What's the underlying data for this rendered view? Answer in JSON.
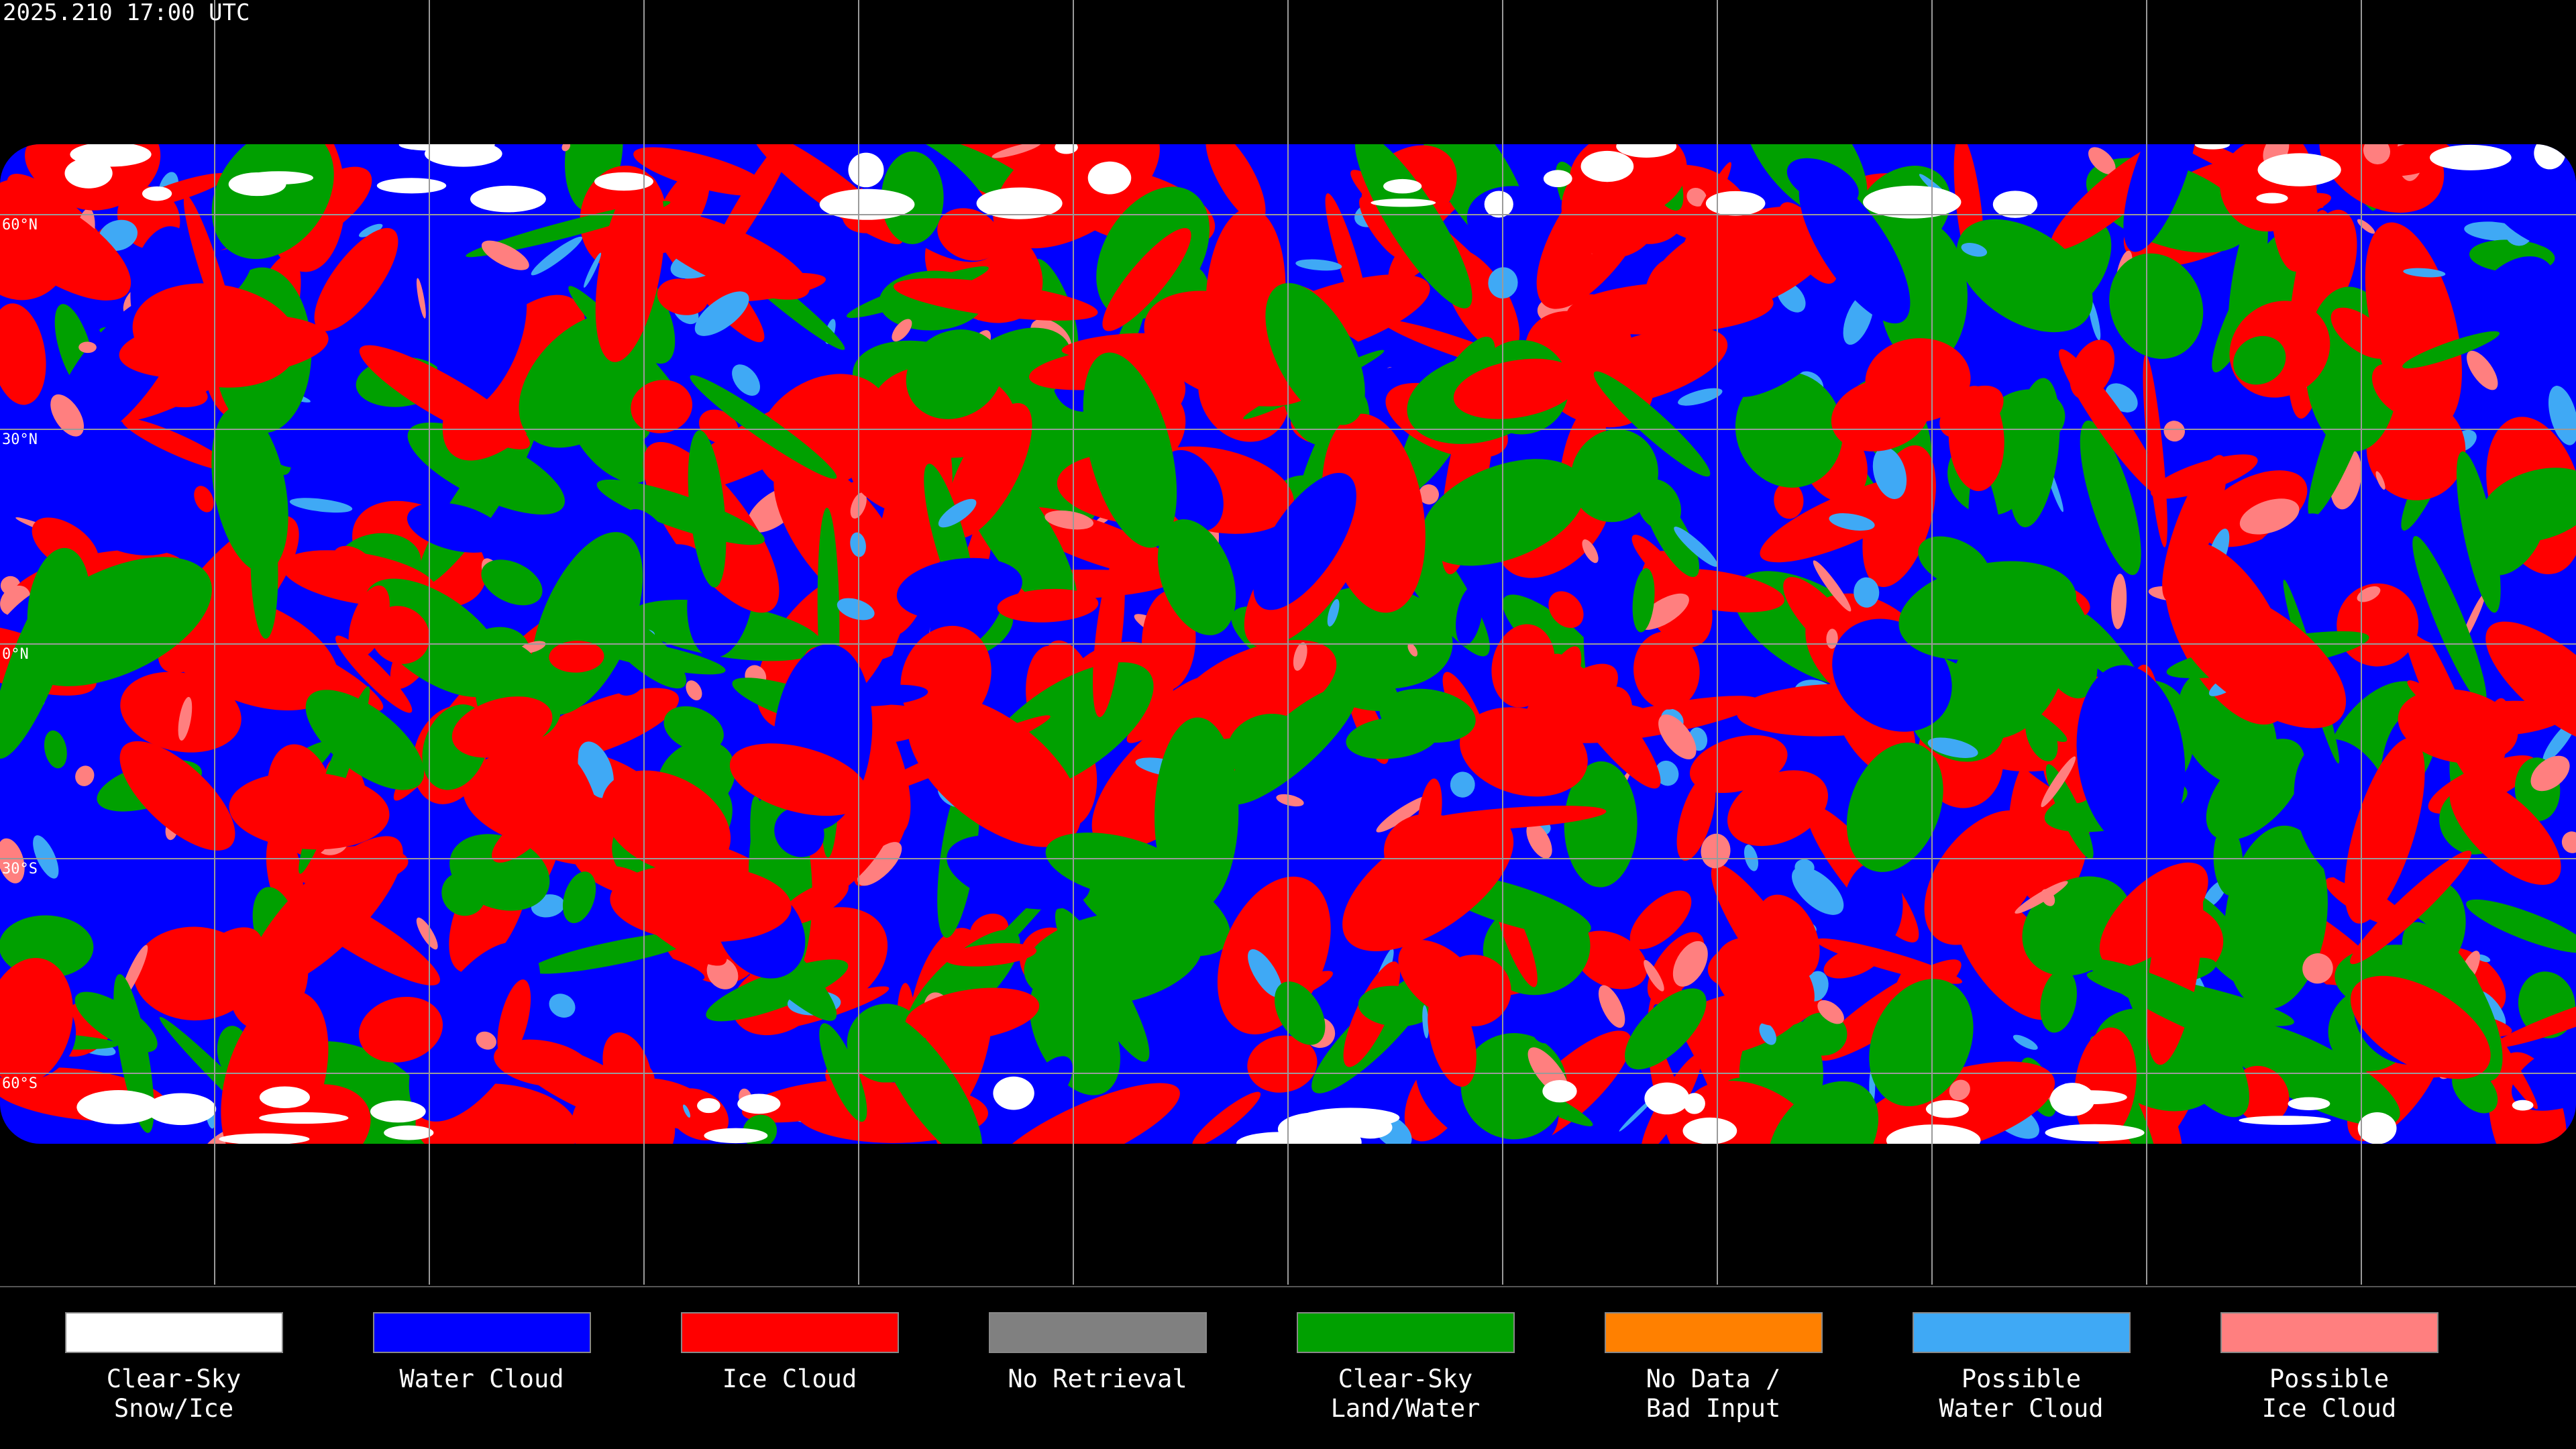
{
  "header": {
    "timestamp": "2025.210 17:00 UTC"
  },
  "map": {
    "lat_labels": [
      "60°N",
      "30°N",
      "0°N",
      "30°S",
      "60°S"
    ]
  },
  "legend": {
    "items": [
      {
        "lines": [
          "Clear-Sky",
          "Snow/Ice"
        ],
        "color": "#ffffff"
      },
      {
        "lines": [
          "Water Cloud"
        ],
        "color": "#0000ff"
      },
      {
        "lines": [
          "Ice Cloud"
        ],
        "color": "#ff0000"
      },
      {
        "lines": [
          "No Retrieval"
        ],
        "color": "#808080"
      },
      {
        "lines": [
          "Clear-Sky",
          "Land/Water"
        ],
        "color": "#00a000"
      },
      {
        "lines": [
          "No Data /",
          "Bad Input"
        ],
        "color": "#ff8000"
      },
      {
        "lines": [
          "Possible",
          "Water Cloud"
        ],
        "color": "#3fa9f5"
      },
      {
        "lines": [
          "Possible",
          "Ice Cloud"
        ],
        "color": "#ff7f7f"
      }
    ]
  }
}
